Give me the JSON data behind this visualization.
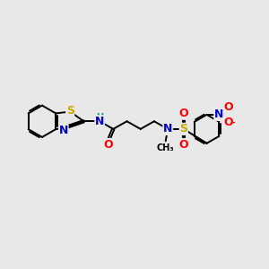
{
  "background_color": "#e8e8e8",
  "figsize": [
    3.0,
    3.0
  ],
  "dpi": 100,
  "atom_colors": {
    "C": "#000000",
    "N": "#0000cc",
    "O": "#ff0000",
    "S": "#ccaa00",
    "H": "#009090"
  },
  "bond_color": "#000000",
  "bond_width": 1.4,
  "font_size": 9,
  "font_size_small": 7,
  "xlim": [
    0,
    12
  ],
  "ylim": [
    0,
    10
  ]
}
